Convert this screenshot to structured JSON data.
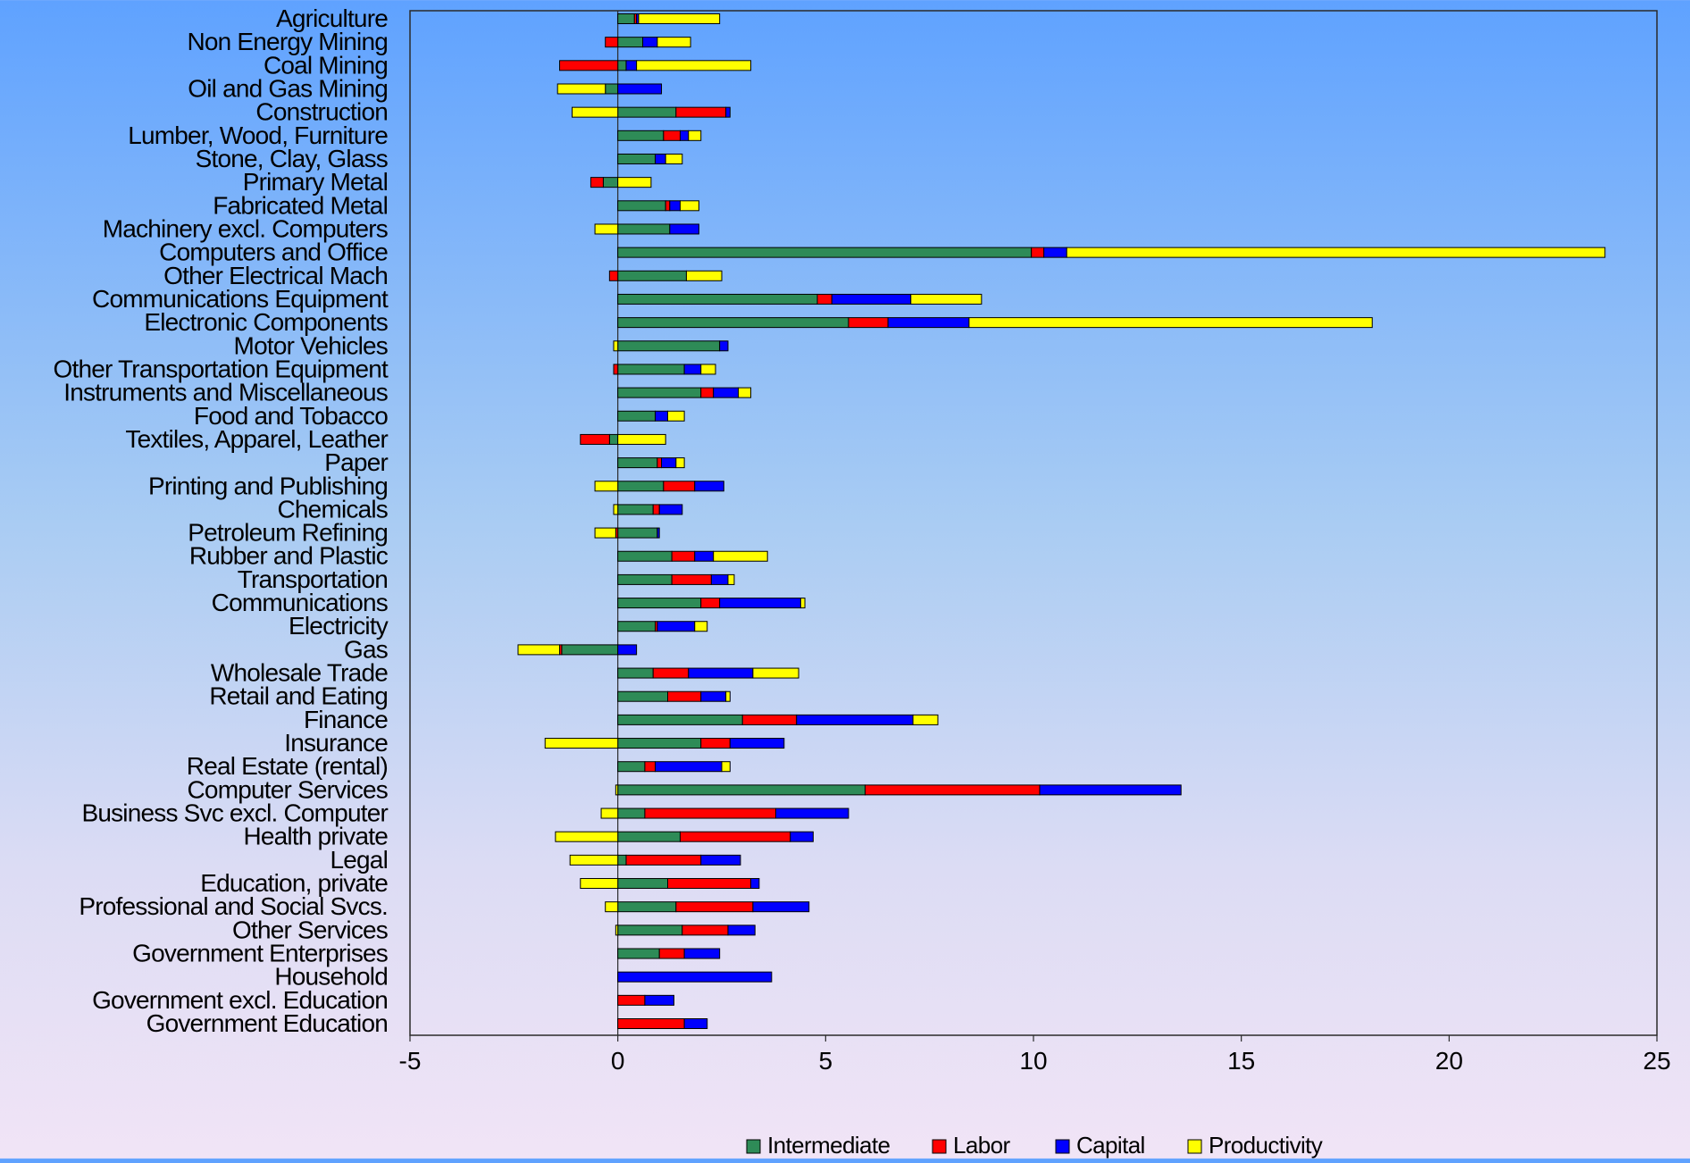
{
  "chart_data": {
    "type": "bar",
    "orientation": "horizontal",
    "stacking": "diverging-stacked",
    "title": "",
    "xlabel": "",
    "ylabel": "",
    "xlim": [
      -5,
      25
    ],
    "xticks": [
      -5,
      0,
      5,
      10,
      15,
      20,
      25
    ],
    "grid": false,
    "legend_position": "bottom",
    "categories": [
      "Agriculture",
      "Non Energy Mining",
      "Coal Mining",
      "Oil and Gas Mining",
      "Construction",
      "Lumber, Wood, Furniture",
      "Stone, Clay, Glass",
      "Primary Metal",
      "Fabricated Metal",
      "Machinery excl. Computers",
      "Computers and Office",
      "Other Electrical Mach",
      "Communications Equipment",
      "Electronic Components",
      "Motor Vehicles",
      "Other Transportation Equipment",
      "Instruments and Miscellaneous",
      "Food and Tobacco",
      "Textiles, Apparel, Leather",
      "Paper",
      "Printing and Publishing",
      "Chemicals",
      "Petroleum Refining",
      "Rubber and Plastic",
      "Transportation",
      "Communications",
      "Electricity",
      "Gas",
      "Wholesale Trade",
      "Retail and Eating",
      "Finance",
      "Insurance",
      "Real Estate (rental)",
      "Computer Services",
      "Business Svc excl. Computer",
      "Health private",
      "Legal",
      "Education, private",
      "Professional and Social Svcs.",
      "Other Services",
      "Government Enterprises",
      "Household",
      "Government excl. Education",
      "Government Education"
    ],
    "series": [
      {
        "name": "Intermediate",
        "color": "#2e8b57",
        "values": [
          0.4,
          0.6,
          0.2,
          -0.3,
          1.4,
          1.1,
          0.9,
          -0.35,
          1.15,
          1.25,
          9.95,
          1.65,
          4.8,
          5.55,
          2.45,
          1.6,
          2.0,
          0.9,
          -0.2,
          0.95,
          1.1,
          0.85,
          0.95,
          1.3,
          1.3,
          2.0,
          0.9,
          -1.35,
          0.85,
          1.2,
          3.0,
          2.0,
          0.65,
          5.95,
          0.65,
          1.5,
          0.2,
          1.2,
          1.4,
          1.55,
          1.0,
          0.0,
          0.0,
          0.0
        ]
      },
      {
        "name": "Labor",
        "color": "#ff0000",
        "values": [
          0.05,
          -0.3,
          -1.4,
          0.0,
          1.2,
          0.4,
          0.0,
          -0.3,
          0.1,
          0.0,
          0.3,
          -0.2,
          0.35,
          0.95,
          0.0,
          -0.1,
          0.3,
          0.0,
          -0.7,
          0.1,
          0.75,
          0.15,
          -0.05,
          0.55,
          0.95,
          0.45,
          0.05,
          -0.05,
          0.85,
          0.8,
          1.3,
          0.7,
          0.25,
          4.2,
          3.15,
          2.65,
          1.8,
          2.0,
          1.85,
          1.1,
          0.6,
          0.0,
          0.65,
          1.6
        ]
      },
      {
        "name": "Capital",
        "color": "#0000ff",
        "values": [
          0.05,
          0.35,
          0.25,
          1.05,
          0.1,
          0.2,
          0.25,
          0.0,
          0.25,
          0.7,
          0.55,
          0.0,
          1.9,
          1.95,
          0.2,
          0.4,
          0.6,
          0.3,
          0.0,
          0.35,
          0.7,
          0.55,
          0.05,
          0.45,
          0.4,
          1.95,
          0.9,
          0.45,
          1.55,
          0.6,
          2.8,
          1.3,
          1.6,
          3.4,
          1.75,
          0.55,
          0.95,
          0.2,
          1.35,
          0.65,
          0.85,
          3.7,
          0.7,
          0.55
        ]
      },
      {
        "name": "Productivity",
        "color": "#ffff00",
        "values": [
          1.95,
          0.8,
          2.75,
          -1.15,
          -1.1,
          0.3,
          0.4,
          0.8,
          0.45,
          -0.55,
          12.95,
          0.85,
          1.7,
          9.7,
          -0.1,
          0.35,
          0.3,
          0.4,
          1.15,
          0.2,
          -0.55,
          -0.1,
          -0.5,
          1.3,
          0.15,
          0.1,
          0.3,
          -1.0,
          1.1,
          0.1,
          0.6,
          -1.75,
          0.2,
          -0.05,
          -0.4,
          -1.5,
          -1.15,
          -0.9,
          -0.3,
          -0.05,
          0.0,
          0.0,
          0.0,
          0.0
        ]
      }
    ]
  }
}
